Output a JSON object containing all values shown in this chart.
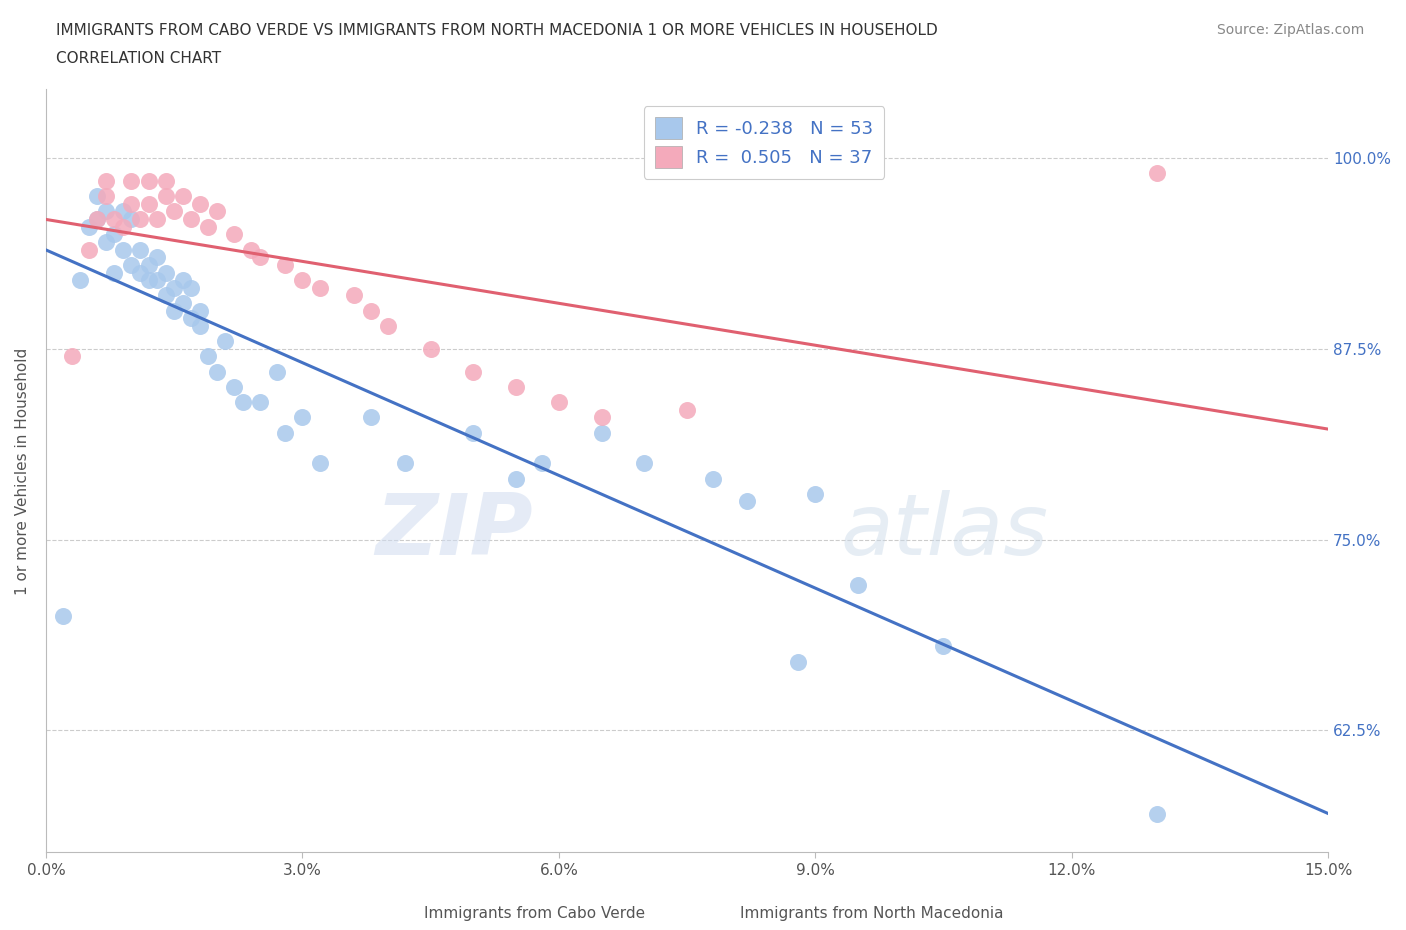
{
  "title_line1": "IMMIGRANTS FROM CABO VERDE VS IMMIGRANTS FROM NORTH MACEDONIA 1 OR MORE VEHICLES IN HOUSEHOLD",
  "title_line2": "CORRELATION CHART",
  "source": "Source: ZipAtlas.com",
  "xlabel_cabo": "Immigrants from Cabo Verde",
  "xlabel_mac": "Immigrants from North Macedonia",
  "ylabel": "1 or more Vehicles in Household",
  "xlim": [
    0.0,
    0.15
  ],
  "ylim": [
    0.545,
    1.045
  ],
  "xticks": [
    0.0,
    0.03,
    0.06,
    0.09,
    0.12,
    0.15
  ],
  "xtick_labels": [
    "0.0%",
    "3.0%",
    "6.0%",
    "9.0%",
    "12.0%",
    "15.0%"
  ],
  "yticks": [
    0.625,
    0.75,
    0.875,
    1.0
  ],
  "ytick_labels": [
    "62.5%",
    "75.0%",
    "87.5%",
    "100.0%"
  ],
  "cabo_verde_R": -0.238,
  "cabo_verde_N": 53,
  "north_mac_R": 0.505,
  "north_mac_N": 37,
  "cabo_verde_color": "#A8C8EC",
  "north_mac_color": "#F4AABB",
  "cabo_verde_line_color": "#4472C4",
  "north_mac_line_color": "#E06070",
  "background_color": "#FFFFFF",
  "watermark": "ZIPatlas",
  "cabo_verde_x": [
    0.002,
    0.004,
    0.005,
    0.006,
    0.006,
    0.007,
    0.007,
    0.008,
    0.008,
    0.009,
    0.009,
    0.01,
    0.01,
    0.011,
    0.011,
    0.012,
    0.012,
    0.013,
    0.013,
    0.014,
    0.014,
    0.015,
    0.015,
    0.016,
    0.016,
    0.017,
    0.017,
    0.018,
    0.018,
    0.019,
    0.02,
    0.021,
    0.022,
    0.023,
    0.025,
    0.027,
    0.028,
    0.03,
    0.032,
    0.038,
    0.042,
    0.05,
    0.055,
    0.058,
    0.065,
    0.07,
    0.078,
    0.082,
    0.088,
    0.09,
    0.095,
    0.105,
    0.13
  ],
  "cabo_verde_y": [
    0.7,
    0.92,
    0.955,
    0.96,
    0.975,
    0.945,
    0.965,
    0.925,
    0.95,
    0.94,
    0.965,
    0.93,
    0.96,
    0.925,
    0.94,
    0.92,
    0.93,
    0.92,
    0.935,
    0.91,
    0.925,
    0.915,
    0.9,
    0.92,
    0.905,
    0.895,
    0.915,
    0.89,
    0.9,
    0.87,
    0.86,
    0.88,
    0.85,
    0.84,
    0.84,
    0.86,
    0.82,
    0.83,
    0.8,
    0.83,
    0.8,
    0.82,
    0.79,
    0.8,
    0.82,
    0.8,
    0.79,
    0.775,
    0.67,
    0.78,
    0.72,
    0.68,
    0.57
  ],
  "north_mac_x": [
    0.003,
    0.005,
    0.006,
    0.007,
    0.007,
    0.008,
    0.009,
    0.01,
    0.01,
    0.011,
    0.012,
    0.012,
    0.013,
    0.014,
    0.014,
    0.015,
    0.016,
    0.017,
    0.018,
    0.019,
    0.02,
    0.022,
    0.024,
    0.025,
    0.028,
    0.03,
    0.032,
    0.036,
    0.038,
    0.04,
    0.045,
    0.05,
    0.055,
    0.06,
    0.065,
    0.075,
    0.13
  ],
  "north_mac_y": [
    0.87,
    0.94,
    0.96,
    0.975,
    0.985,
    0.96,
    0.955,
    0.97,
    0.985,
    0.96,
    0.97,
    0.985,
    0.96,
    0.975,
    0.985,
    0.965,
    0.975,
    0.96,
    0.97,
    0.955,
    0.965,
    0.95,
    0.94,
    0.935,
    0.93,
    0.92,
    0.915,
    0.91,
    0.9,
    0.89,
    0.875,
    0.86,
    0.85,
    0.84,
    0.83,
    0.835,
    0.99
  ]
}
